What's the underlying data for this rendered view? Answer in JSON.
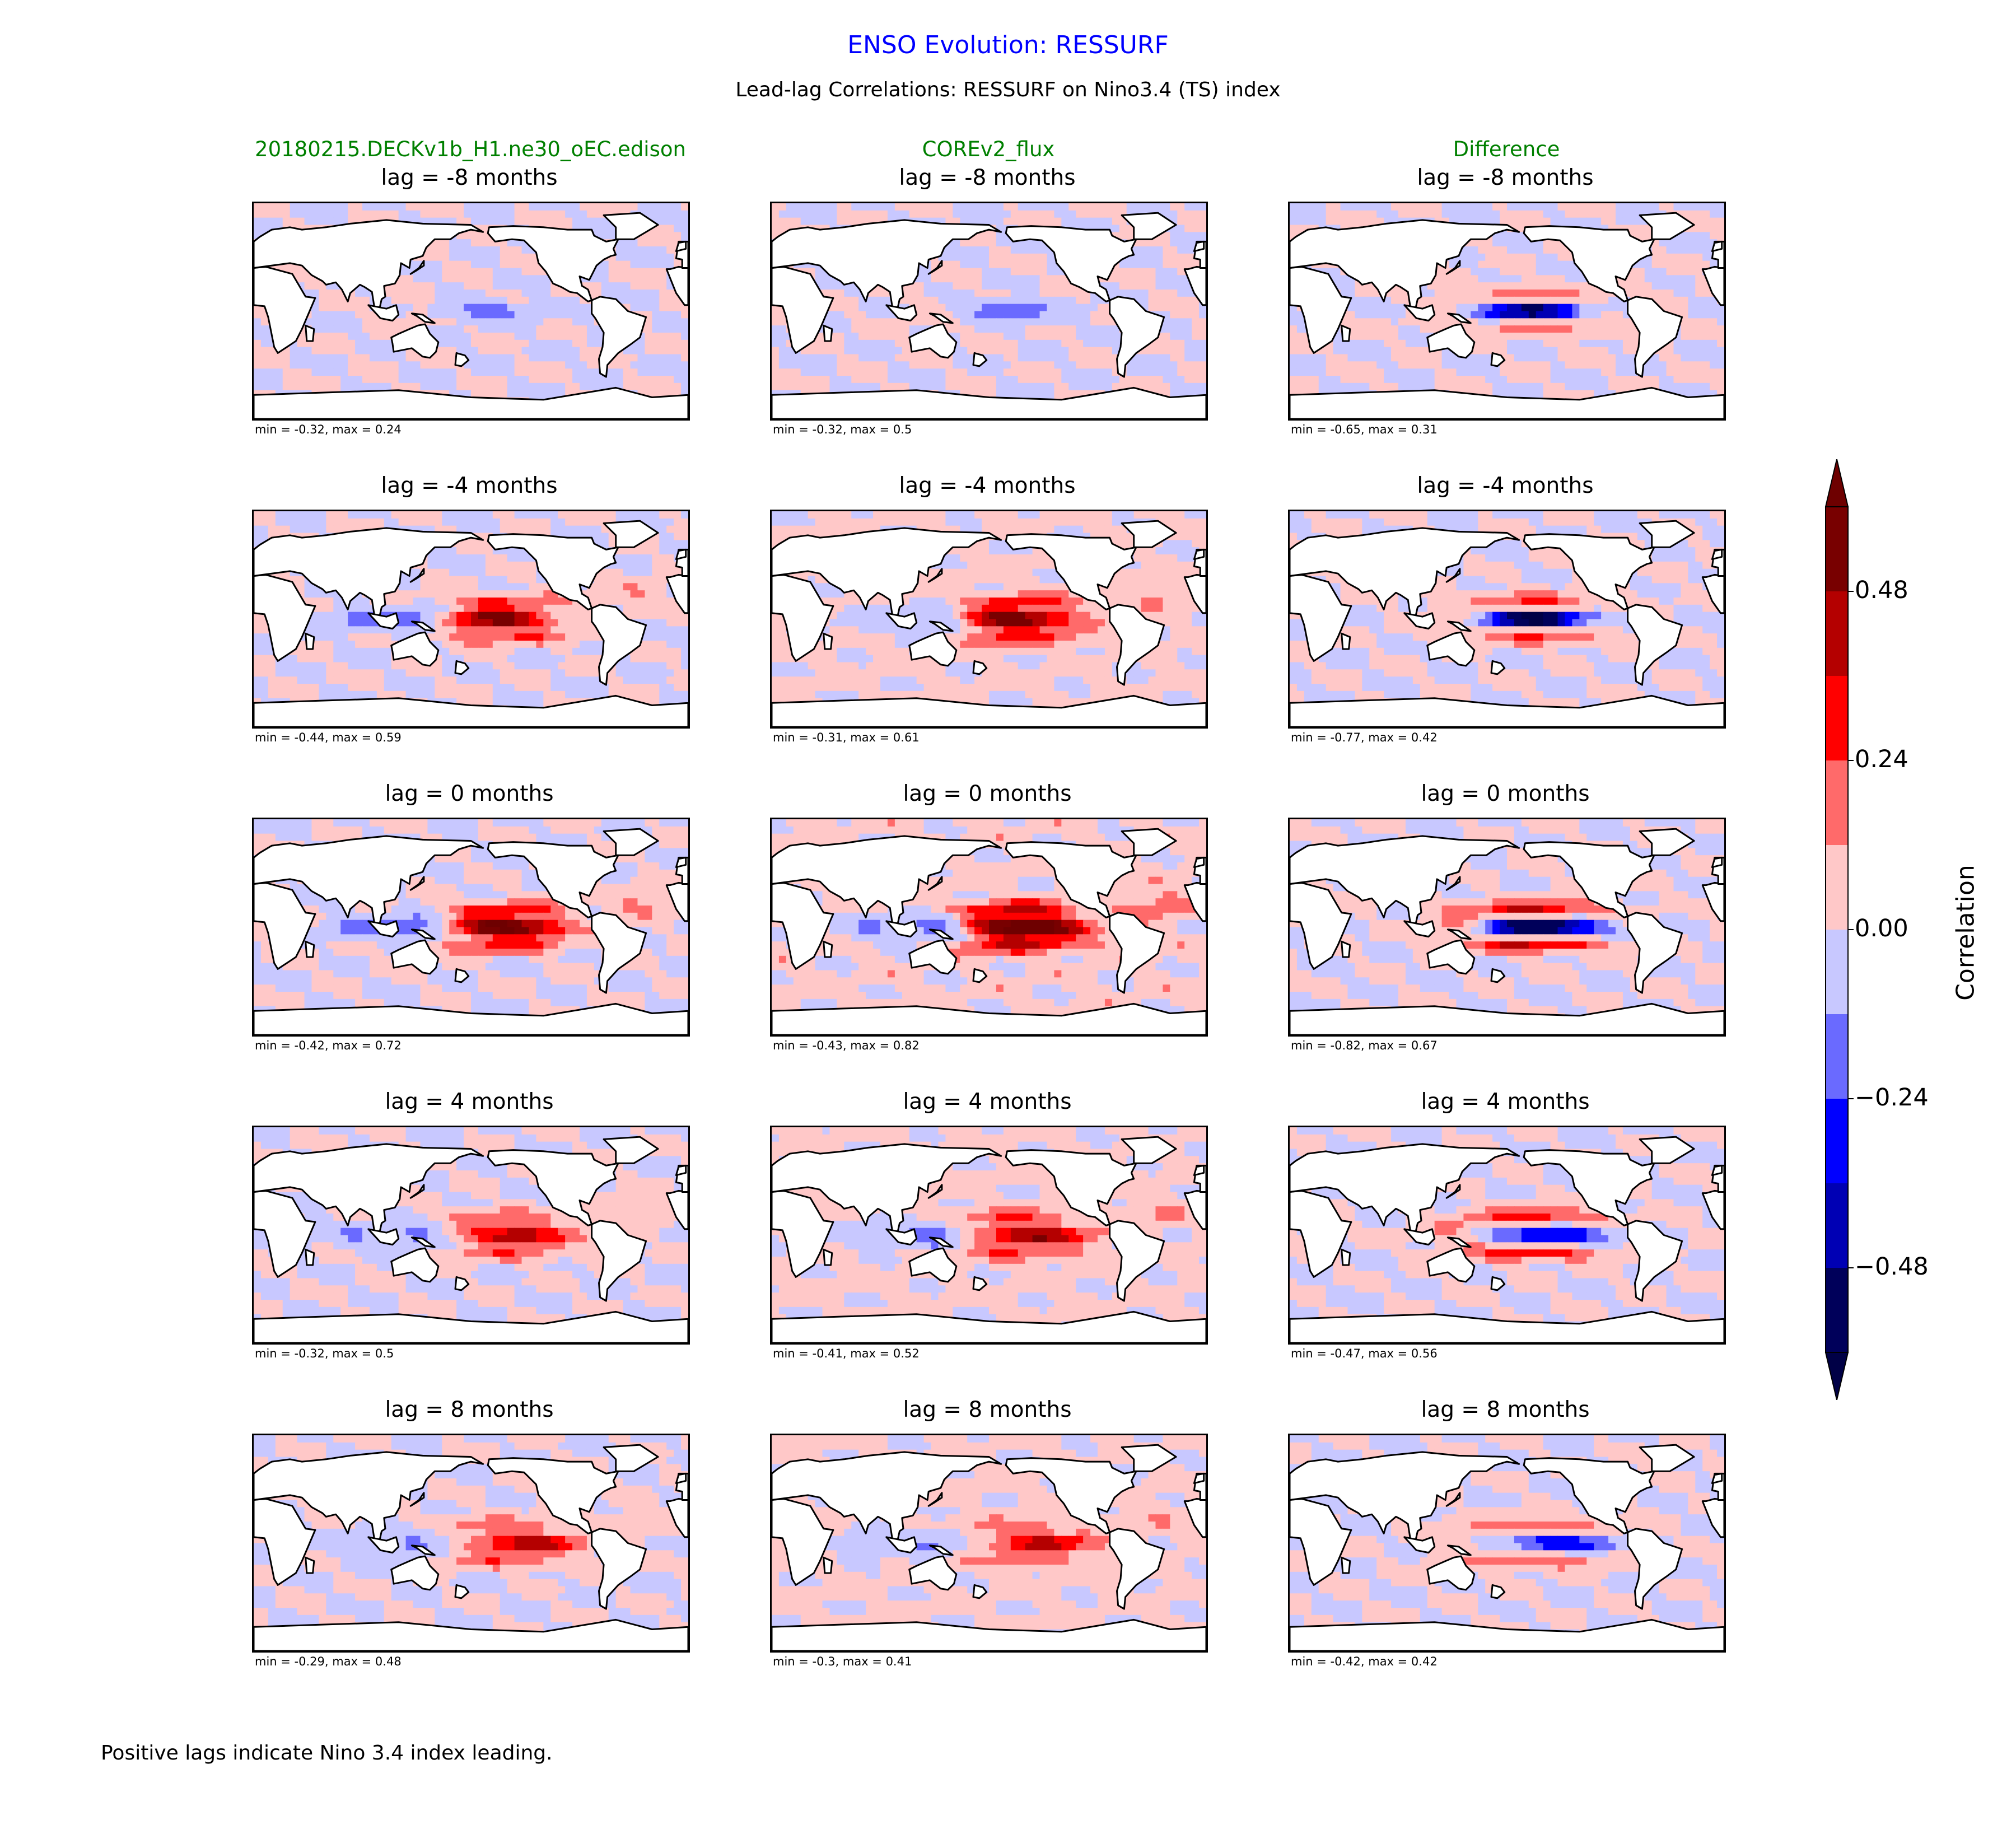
{
  "title": "ENSO Evolution: RESSURF",
  "subtitle": "Lead-lag Correlations: RESSURF on Nino3.4 (TS) index",
  "columns": [
    "20180215.DECKv1b_H1.ne30_oEC.edison",
    "COREv2_flux",
    "Difference"
  ],
  "footnote": "Positive lags indicate Nino 3.4 index leading.",
  "colorbar": {
    "label": "Correlation",
    "levels": [
      -0.6,
      -0.48,
      -0.36,
      -0.24,
      -0.12,
      0.0,
      0.12,
      0.24,
      0.36,
      0.48,
      0.6
    ],
    "colors": [
      "#00005a",
      "#0000b4",
      "#0000ff",
      "#6a6aff",
      "#c8c8ff",
      "#ffc8c8",
      "#ff6a6a",
      "#ff0000",
      "#b40000",
      "#780000"
    ],
    "extend_low_color": "#000046",
    "extend_high_color": "#6e0000",
    "tick_values": [
      0.48,
      0.24,
      0.0,
      -0.24,
      -0.48
    ],
    "tick_labels": [
      "0.48",
      "0.24",
      "0.00",
      "−0.24",
      "−0.48"
    ]
  },
  "chart_data": [
    {
      "type": "heatmap",
      "row": 0,
      "col": 0,
      "title": "lag = -8 months",
      "stats": "min = -0.32, max = 0.24",
      "min": -0.32,
      "max": 0.24
    },
    {
      "type": "heatmap",
      "row": 0,
      "col": 1,
      "title": "lag = -8 months",
      "stats": "min = -0.32, max = 0.5",
      "min": -0.32,
      "max": 0.5
    },
    {
      "type": "heatmap",
      "row": 0,
      "col": 2,
      "title": "lag = -8 months",
      "stats": "min = -0.65, max = 0.31",
      "min": -0.65,
      "max": 0.31
    },
    {
      "type": "heatmap",
      "row": 1,
      "col": 0,
      "title": "lag = -4 months",
      "stats": "min = -0.44, max = 0.59",
      "min": -0.44,
      "max": 0.59
    },
    {
      "type": "heatmap",
      "row": 1,
      "col": 1,
      "title": "lag = -4 months",
      "stats": "min = -0.31, max = 0.61",
      "min": -0.31,
      "max": 0.61
    },
    {
      "type": "heatmap",
      "row": 1,
      "col": 2,
      "title": "lag = -4 months",
      "stats": "min = -0.77, max = 0.42",
      "min": -0.77,
      "max": 0.42
    },
    {
      "type": "heatmap",
      "row": 2,
      "col": 0,
      "title": "lag = 0 months",
      "stats": "min = -0.42, max = 0.72",
      "min": -0.42,
      "max": 0.72
    },
    {
      "type": "heatmap",
      "row": 2,
      "col": 1,
      "title": "lag = 0 months",
      "stats": "min = -0.43, max = 0.82",
      "min": -0.43,
      "max": 0.82
    },
    {
      "type": "heatmap",
      "row": 2,
      "col": 2,
      "title": "lag = 0 months",
      "stats": "min = -0.82, max = 0.67",
      "min": -0.82,
      "max": 0.67
    },
    {
      "type": "heatmap",
      "row": 3,
      "col": 0,
      "title": "lag = 4 months",
      "stats": "min = -0.32, max = 0.5",
      "min": -0.32,
      "max": 0.5
    },
    {
      "type": "heatmap",
      "row": 3,
      "col": 1,
      "title": "lag = 4 months",
      "stats": "min = -0.41, max = 0.52",
      "min": -0.41,
      "max": 0.52
    },
    {
      "type": "heatmap",
      "row": 3,
      "col": 2,
      "title": "lag = 4 months",
      "stats": "min = -0.47, max = 0.56",
      "min": -0.47,
      "max": 0.56
    },
    {
      "type": "heatmap",
      "row": 4,
      "col": 0,
      "title": "lag = 8 months",
      "stats": "min = -0.29, max = 0.48",
      "min": -0.29,
      "max": 0.48
    },
    {
      "type": "heatmap",
      "row": 4,
      "col": 1,
      "title": "lag = 8 months",
      "stats": "min = -0.3, max = 0.41",
      "min": -0.3,
      "max": 0.41
    },
    {
      "type": "heatmap",
      "row": 4,
      "col": 2,
      "title": "lag = 8 months",
      "stats": "min = -0.42, max = 0.42",
      "min": -0.42,
      "max": 0.42
    }
  ]
}
